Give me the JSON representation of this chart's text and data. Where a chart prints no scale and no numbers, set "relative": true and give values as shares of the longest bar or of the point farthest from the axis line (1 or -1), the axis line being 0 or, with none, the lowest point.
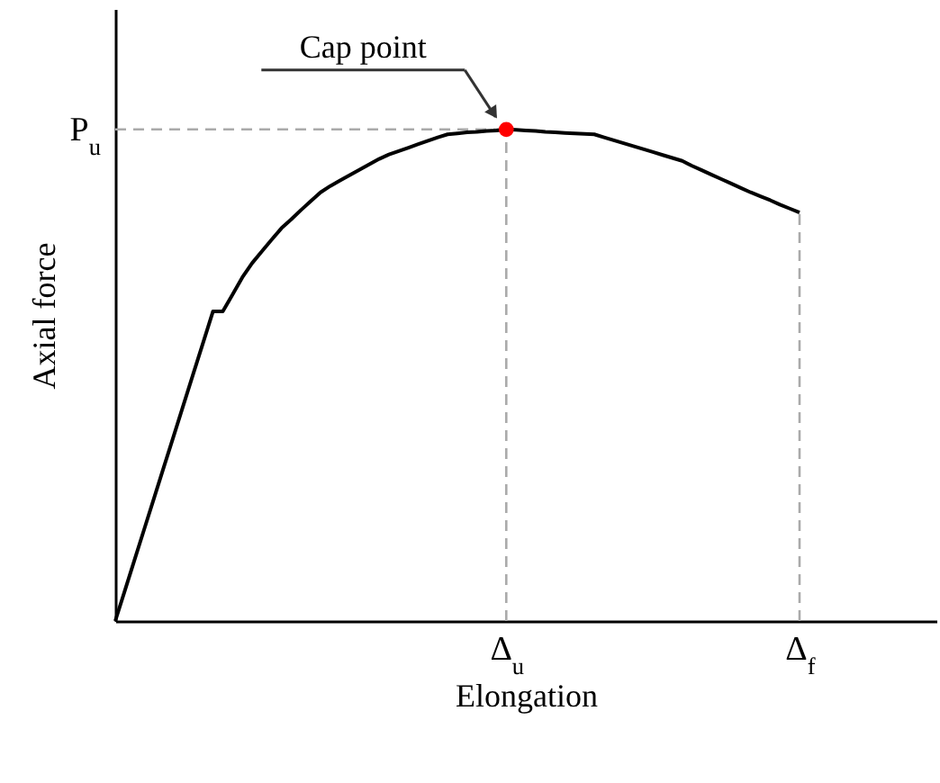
{
  "chart_data": {
    "type": "line",
    "relative": true,
    "xlabel": "Elongation",
    "ylabel": "Axial force",
    "categories": [
      null,
      null,
      null,
      null,
      null,
      null,
      null,
      null,
      null,
      null,
      null,
      null,
      null,
      null,
      null,
      null,
      null,
      null,
      null,
      null,
      null,
      null,
      null,
      null,
      null,
      null,
      null,
      null,
      null,
      null,
      null,
      null,
      null,
      null,
      null,
      null,
      null,
      null,
      null,
      null,
      "Δ$_{u}$",
      null,
      null,
      null,
      null,
      null,
      null,
      null,
      null,
      null,
      null,
      null,
      null,
      null,
      null,
      null,
      null,
      null,
      null,
      null,
      null,
      null,
      null,
      null,
      null,
      null,
      null,
      null,
      null,
      null,
      "Δ$_{f}$",
      null,
      null,
      null,
      null,
      null,
      null,
      null,
      null,
      null,
      null,
      null,
      null,
      null,
      null
    ],
    "grid": false,
    "series": [
      {
        "color": "#000000",
        "marker": "none",
        "line_style": "solid",
        "values": [
          0,
          0.063,
          0.126,
          0.189,
          0.252,
          0.315,
          0.378,
          0.441,
          0.504,
          0.567,
          0.63,
          0.63,
          0.664,
          0.699,
          0.728,
          0.752,
          0.776,
          0.799,
          0.817,
          0.836,
          0.854,
          0.872,
          0.885,
          0.896,
          0.907,
          0.918,
          0.929,
          0.94,
          0.949,
          0.956,
          0.963,
          0.97,
          0.977,
          0.984,
          0.99,
          0.992,
          0.994,
          0.995,
          0.997,
          0.998,
          1,
          0.999,
          0.998,
          0.997,
          0.995,
          0.994,
          0.993,
          0.992,
          0.991,
          0.99,
          0.984,
          0.978,
          0.972,
          0.966,
          0.96,
          0.954,
          0.948,
          0.942,
          0.936,
          0.926,
          0.917,
          0.908,
          0.899,
          0.89,
          0.881,
          0.872,
          0.864,
          0.856,
          0.847,
          0.839,
          0.831,
          null,
          null,
          null,
          null,
          null,
          null,
          null,
          null,
          null,
          null,
          null,
          null,
          null,
          null
        ]
      },
      {
        "type": "scatter",
        "color": "#ff0000",
        "marker": "circle",
        "x": [
          "Δ$_{u}$"
        ],
        "values": [
          1
        ]
      }
    ],
    "ref_lines": [
      {
        "axis": "y",
        "value": 1,
        "label": "P$_{u}$",
        "color": "#aaaaaa",
        "line_style": "dashed"
      },
      {
        "axis": "x",
        "value": "Δ$_{u}$",
        "color": "#aaaaaa",
        "line_style": "dashed"
      },
      {
        "axis": "x",
        "value": "Δ$_{f}$",
        "color": "#aaaaaa",
        "line_style": "dashed"
      }
    ],
    "annotations": [
      "Cap point"
    ]
  }
}
